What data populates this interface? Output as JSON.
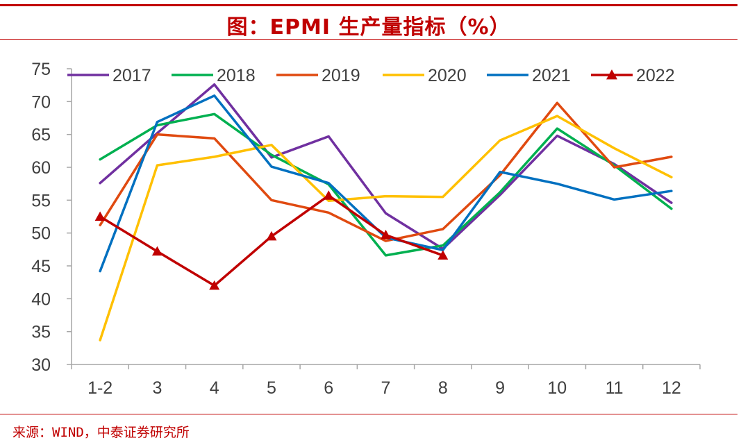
{
  "header": {
    "title": "图：EPMI 生产量指标（%）"
  },
  "footer": {
    "source": "来源：WIND，中泰证券研究所"
  },
  "chart_data": {
    "type": "line",
    "title": "图：EPMI 生产量指标（%）",
    "categories": [
      "1-2",
      "3",
      "4",
      "5",
      "6",
      "7",
      "8",
      "9",
      "10",
      "11",
      "12"
    ],
    "ylim": [
      30,
      75
    ],
    "yticks": [
      30,
      35,
      40,
      45,
      50,
      55,
      60,
      65,
      70,
      75
    ],
    "grid": false,
    "legend": "top",
    "series": [
      {
        "name": "2017",
        "color": "#7030a0",
        "marker": "none",
        "values": [
          57.6,
          65.2,
          72.6,
          61.5,
          64.7,
          53.0,
          47.6,
          55.8,
          64.8,
          60.5,
          54.6
        ]
      },
      {
        "name": "2018",
        "color": "#00b050",
        "marker": "none",
        "values": [
          61.2,
          66.4,
          68.1,
          61.9,
          57.4,
          46.6,
          48.1,
          56.2,
          65.9,
          60.3,
          53.7
        ]
      },
      {
        "name": "2019",
        "color": "#e04a10",
        "marker": "none",
        "values": [
          51.2,
          65.0,
          64.4,
          55.0,
          53.1,
          48.8,
          50.6,
          58.8,
          69.8,
          60.0,
          61.6
        ]
      },
      {
        "name": "2020",
        "color": "#ffc000",
        "marker": "none",
        "values": [
          33.7,
          60.3,
          61.6,
          63.4,
          54.9,
          55.6,
          55.5,
          64.1,
          67.8,
          62.9,
          58.5
        ]
      },
      {
        "name": "2021",
        "color": "#0070c0",
        "marker": "none",
        "values": [
          44.2,
          66.9,
          70.9,
          60.1,
          57.6,
          49.3,
          47.4,
          59.3,
          57.5,
          55.1,
          56.4
        ]
      },
      {
        "name": "2022",
        "color": "#c00000",
        "marker": "triangle",
        "values": [
          52.5,
          47.2,
          42.0,
          49.5,
          55.7,
          49.7,
          46.6,
          null,
          null,
          null,
          null
        ]
      }
    ]
  }
}
